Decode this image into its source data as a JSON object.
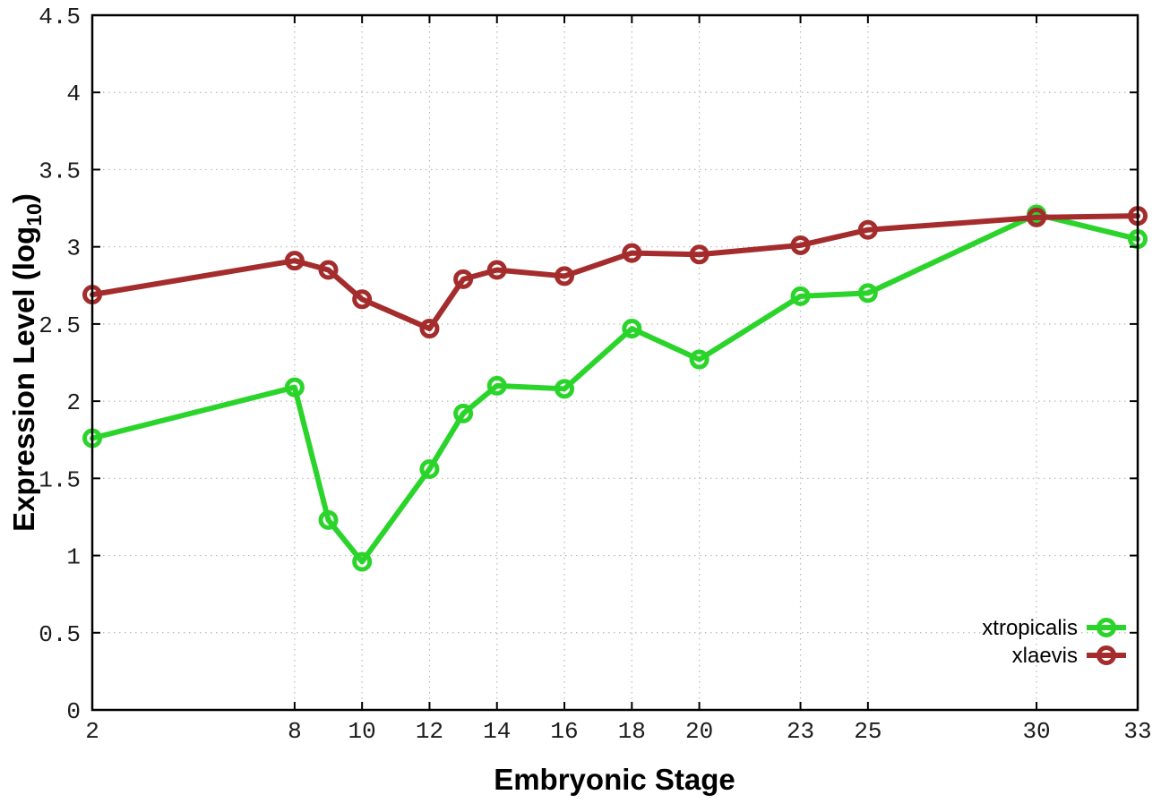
{
  "chart_data": {
    "type": "line",
    "title": "",
    "xlabel": "Embryonic Stage",
    "ylabel": "Expression Level (log10)",
    "ylabel_parts": {
      "base": "Expression Level (log",
      "sub": "10",
      "end": ")"
    },
    "x": [
      2,
      8,
      9,
      10,
      12,
      13,
      14,
      16,
      18,
      20,
      23,
      25,
      30,
      33
    ],
    "series": [
      {
        "name": "xtropicalis",
        "color": "#2bd42b",
        "values": [
          1.76,
          2.09,
          1.23,
          0.96,
          1.56,
          1.92,
          2.1,
          2.08,
          2.47,
          2.27,
          2.68,
          2.7,
          3.21,
          3.05
        ]
      },
      {
        "name": "xlaevis",
        "color": "#a42c2c",
        "values": [
          2.69,
          2.91,
          2.85,
          2.66,
          2.47,
          2.79,
          2.85,
          2.81,
          2.96,
          2.95,
          3.01,
          3.11,
          3.19,
          3.2
        ]
      }
    ],
    "xticks": [
      2,
      8,
      10,
      12,
      14,
      16,
      18,
      20,
      23,
      25,
      30,
      33
    ],
    "yticks": [
      0,
      0.5,
      1,
      1.5,
      2,
      2.5,
      3,
      3.5,
      4,
      4.5
    ],
    "xlim": [
      2,
      33
    ],
    "ylim": [
      0,
      4.5
    ],
    "grid": true,
    "grid_style": "dotted",
    "legend_position": "inside-bottom-right",
    "marker": "open-circle",
    "colors": {
      "axis": "#000000",
      "grid": "#b8b8b8",
      "background": "#ffffff",
      "tick_text": "#1c1c1c"
    }
  }
}
